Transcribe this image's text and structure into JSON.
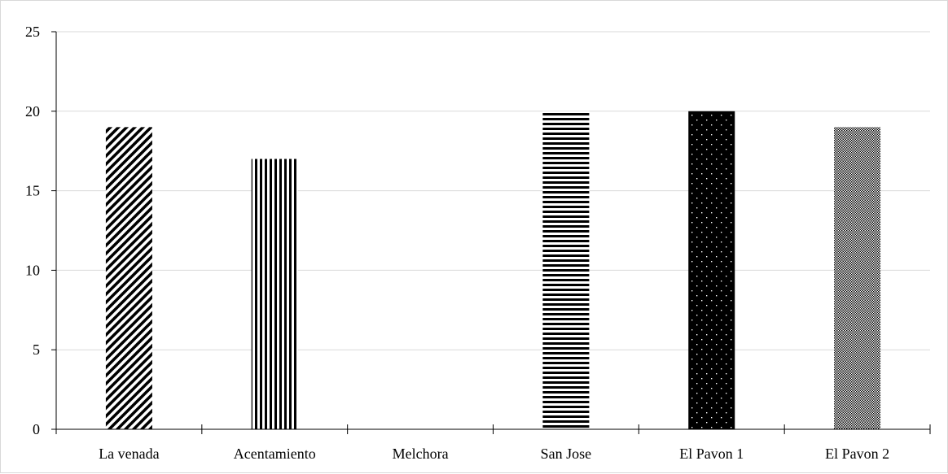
{
  "chart_data": {
    "type": "bar",
    "title": "",
    "xlabel": "",
    "ylabel": "",
    "categories": [
      "La venada",
      "Acentamiento",
      "Melchora",
      "San Jose",
      "El Pavon 1",
      "El Pavon 2"
    ],
    "values": [
      19,
      17,
      0,
      20,
      20,
      19
    ],
    "patterns": [
      "diagonal-stripes",
      "vertical-stripes",
      "none",
      "horizontal-stripes",
      "black-with-white-dots",
      "fine-checker"
    ],
    "ylim": [
      0,
      25
    ],
    "yticks": [
      "0",
      "5",
      "10",
      "15",
      "20",
      "25"
    ],
    "grid": true,
    "legend": "none",
    "colors": {
      "bar": "#000000",
      "grid": "#d9d9d9",
      "axis": "#000000"
    }
  }
}
